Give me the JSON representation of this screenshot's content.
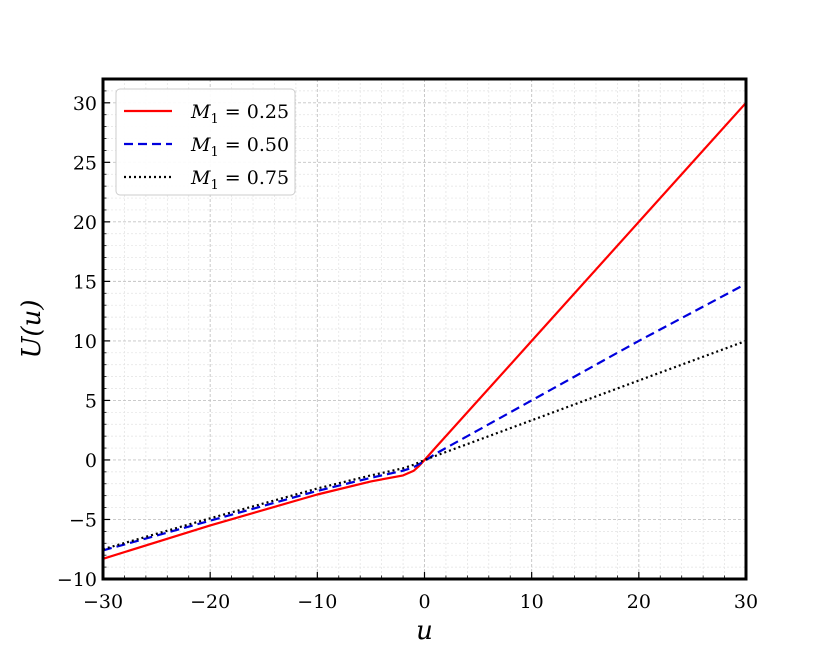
{
  "chart_data": {
    "type": "line",
    "title": "",
    "xlabel": "u",
    "ylabel": "U(u)",
    "xlim": [
      -30,
      30
    ],
    "ylim": [
      -10,
      32
    ],
    "xticks": [
      -30,
      -20,
      -10,
      0,
      10,
      20,
      30
    ],
    "xtick_labels": [
      "−30",
      "−20",
      "−10",
      "0",
      "10",
      "20",
      "30"
    ],
    "yticks": [
      -10,
      -5,
      0,
      5,
      10,
      15,
      20,
      25,
      30
    ],
    "ytick_labels": [
      "−10",
      "−5",
      "0",
      "5",
      "10",
      "15",
      "20",
      "25",
      "30"
    ],
    "grid": true,
    "legend_position": "top-left",
    "series": [
      {
        "name": "M1 = 0.25",
        "name_parts": {
          "symbol": "M",
          "subscript": "1",
          "value": "= 0.25"
        },
        "color": "#ff0000",
        "style": "solid",
        "x": [
          -30,
          -20,
          -10,
          -5,
          -2,
          -1,
          -0.5,
          0,
          0.5,
          1,
          2,
          5,
          10,
          20,
          30
        ],
        "y": [
          -8.3,
          -5.5,
          -2.9,
          -1.8,
          -1.3,
          -0.9,
          -0.5,
          0.0,
          0.5,
          1.0,
          2.0,
          5.0,
          10.0,
          20.0,
          30.0
        ]
      },
      {
        "name": "M1 = 0.50",
        "name_parts": {
          "symbol": "M",
          "subscript": "1",
          "value": "= 0.50"
        },
        "color": "#0000dd",
        "style": "dashed",
        "x": [
          -30,
          -20,
          -10,
          -5,
          -2,
          -1,
          0,
          1,
          2,
          5,
          10,
          20,
          30
        ],
        "y": [
          -7.6,
          -5.1,
          -2.6,
          -1.5,
          -0.9,
          -0.6,
          -0.1,
          0.5,
          1.0,
          2.5,
          5.0,
          10.0,
          14.8
        ]
      },
      {
        "name": "M1 = 0.75",
        "name_parts": {
          "symbol": "M",
          "subscript": "1",
          "value": "= 0.75"
        },
        "color": "#000000",
        "style": "dotted",
        "x": [
          -30,
          -20,
          -10,
          -5,
          -2,
          -1,
          0,
          1,
          2,
          5,
          10,
          20,
          30
        ],
        "y": [
          -7.5,
          -4.9,
          -2.4,
          -1.3,
          -0.7,
          -0.4,
          0.0,
          0.33,
          0.67,
          1.67,
          3.33,
          6.67,
          10.0
        ]
      }
    ]
  }
}
